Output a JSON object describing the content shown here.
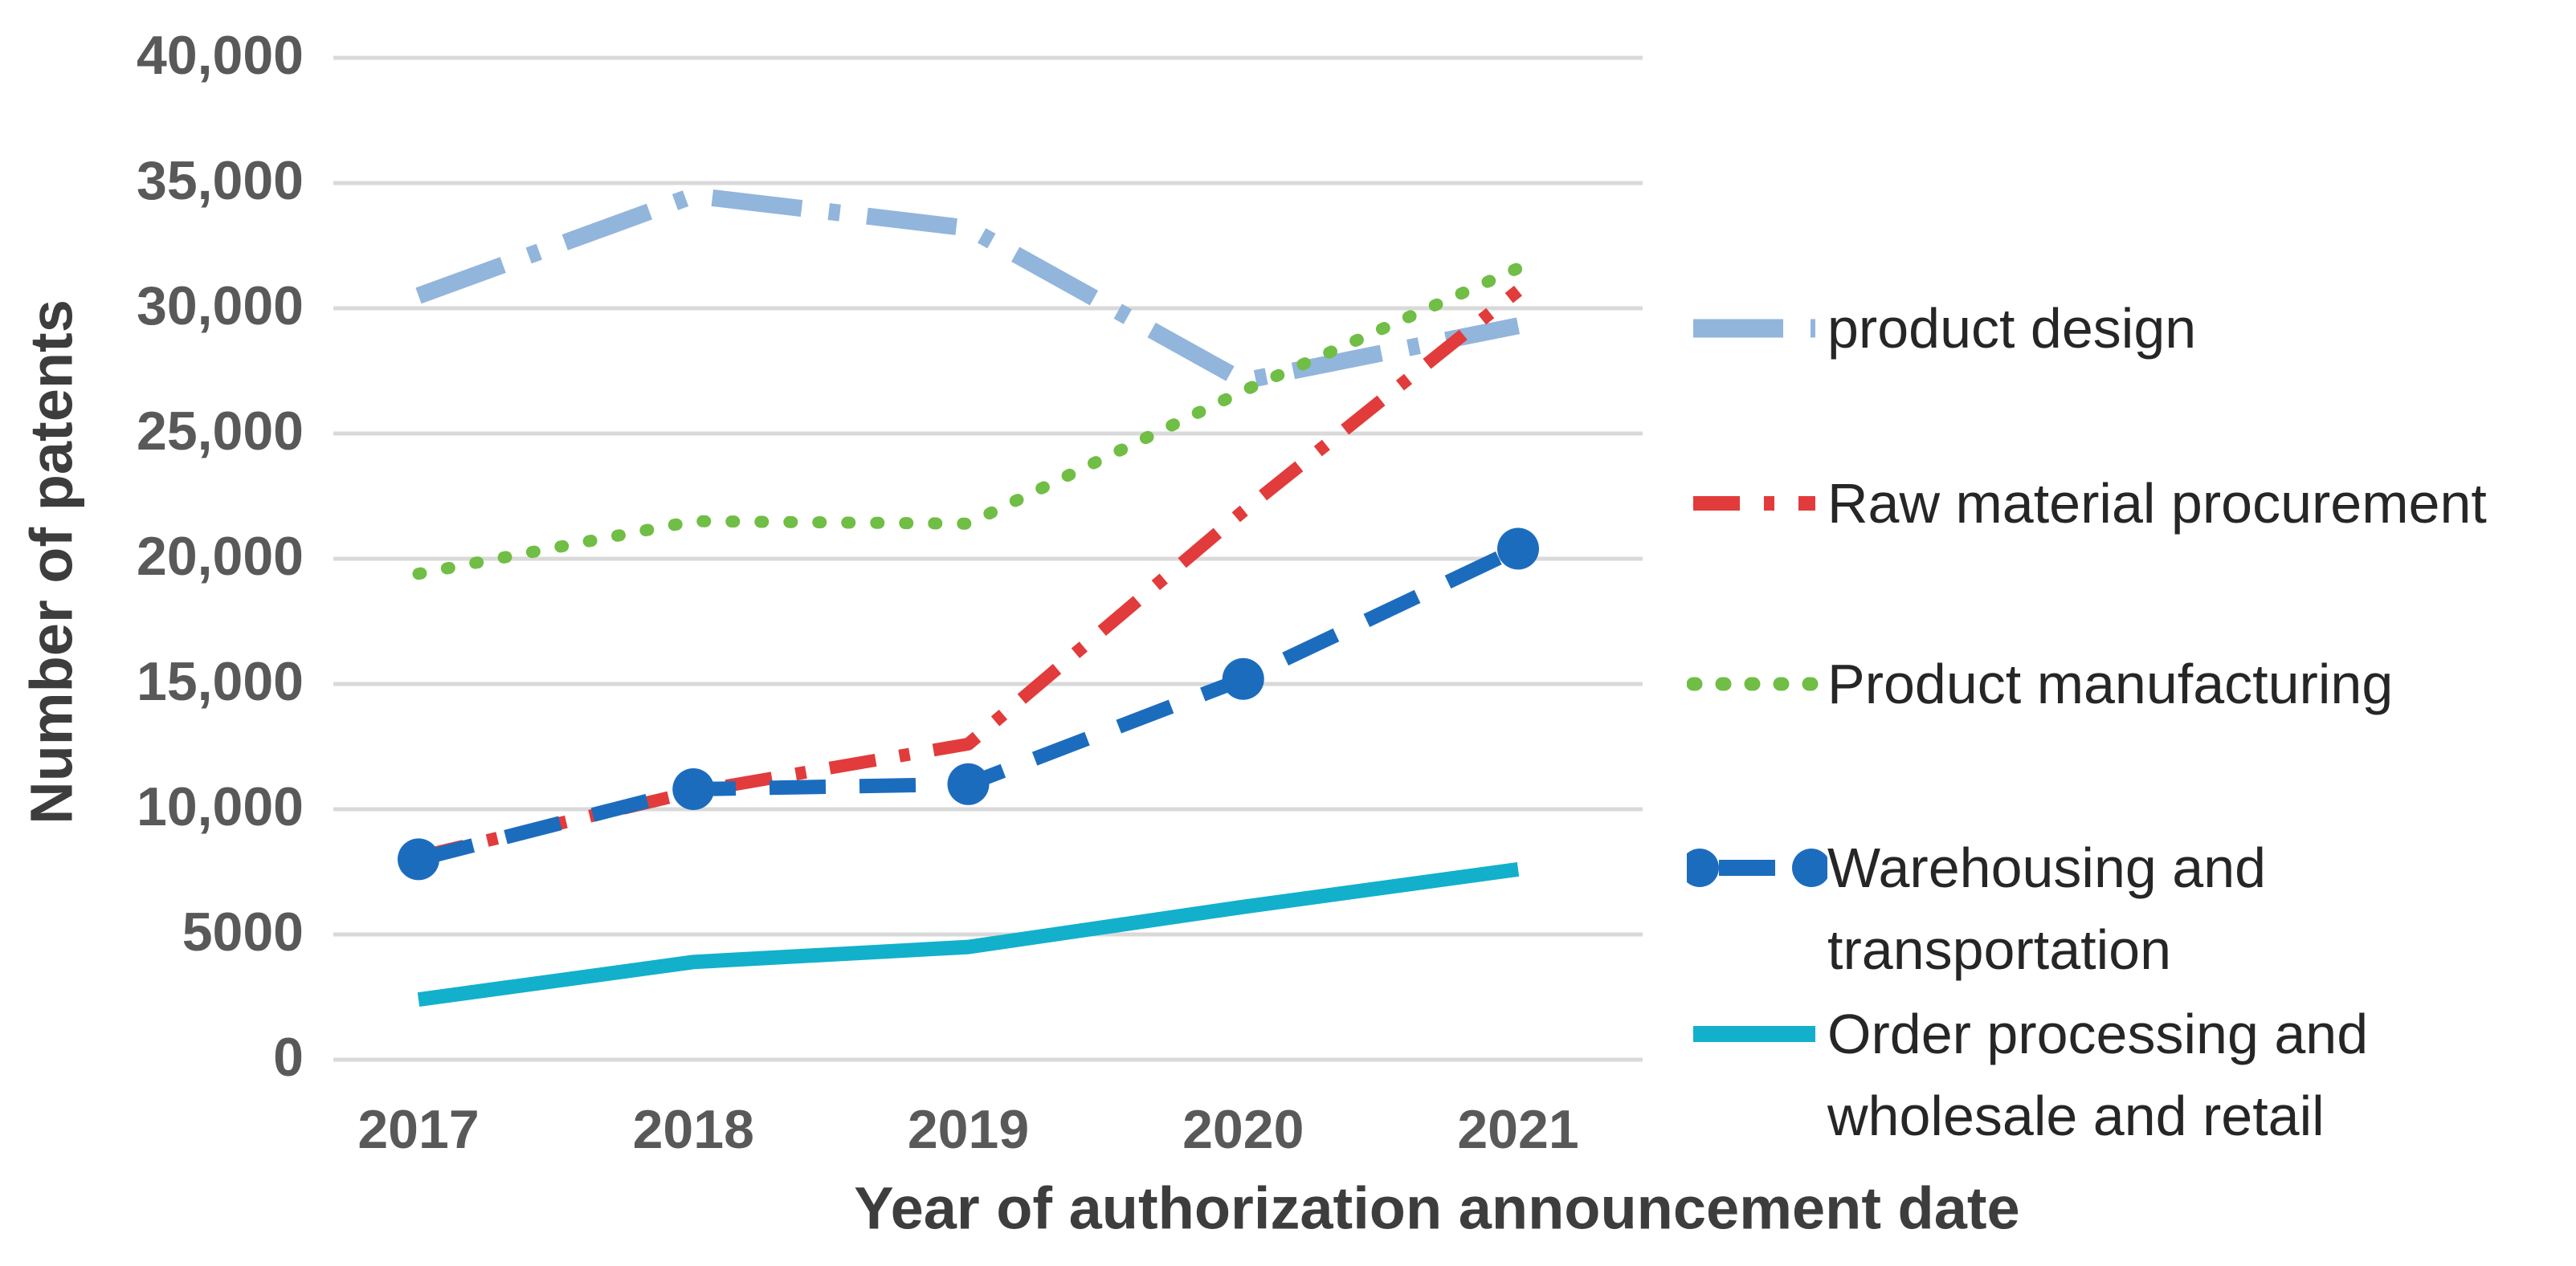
{
  "chart_data": {
    "type": "line",
    "title": "",
    "xlabel": "Year of authorization announcement date",
    "ylabel": "Number of patents",
    "categories": [
      "2017",
      "2018",
      "2019",
      "2020",
      "2021"
    ],
    "y_ticks": [
      "40,000",
      "35,000",
      "30,000",
      "25,000",
      "20,000",
      "15,000",
      "10,000",
      "5000",
      "0"
    ],
    "ylim": [
      0,
      40000
    ],
    "grid": true,
    "legend_position": "right",
    "series": [
      {
        "name": "product design",
        "color": "#92b5dc",
        "style": "long-dash-dot",
        "values": [
          30500,
          34500,
          33200,
          27100,
          29300
        ]
      },
      {
        "name": "Raw material procurement",
        "color": "#e23b3b",
        "style": "dash-dot",
        "values": [
          8100,
          10700,
          12600,
          21900,
          30700
        ]
      },
      {
        "name": "Product manufacturing",
        "color": "#70be45",
        "style": "dotted",
        "values": [
          19400,
          21500,
          21400,
          26700,
          31600
        ]
      },
      {
        "name": "Warehousing and transportation",
        "color": "#1c6cbe",
        "style": "dash-marker",
        "values": [
          8000,
          10800,
          11000,
          15200,
          20400
        ]
      },
      {
        "name": "Order processing and wholesale and retail",
        "color": "#12b0cb",
        "style": "solid",
        "values": [
          2400,
          3900,
          4500,
          6100,
          7600
        ]
      }
    ],
    "gridline_color": "#d9d9d9"
  }
}
